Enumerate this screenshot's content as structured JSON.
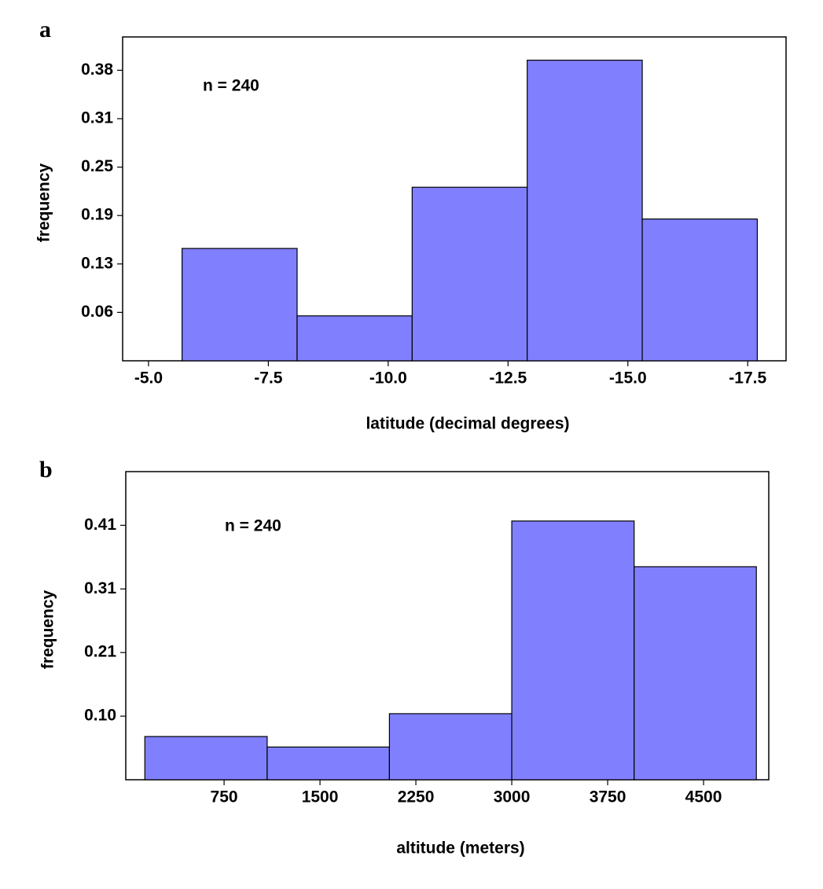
{
  "chart_data": [
    {
      "type": "histogram",
      "label": "a",
      "annotation": "n = 240",
      "xlabel": "latitude (decimal degrees)",
      "ylabel": "frequency",
      "bins": [
        -5.7,
        -8.1,
        -10.5,
        -12.9,
        -15.3,
        -17.7
      ],
      "values": [
        0.145,
        0.058,
        0.224,
        0.388,
        0.183
      ],
      "color": "#8080ff",
      "xlim": [
        -4.46,
        -18.3
      ],
      "xticks": [
        {
          "value": -5,
          "label": "-5.0"
        },
        {
          "value": -7.5,
          "label": "-7.5"
        },
        {
          "value": -10,
          "label": "-10.0"
        },
        {
          "value": -12.5,
          "label": "-12.5"
        },
        {
          "value": -15,
          "label": "-15.0"
        },
        {
          "value": -17.5,
          "label": "-17.5"
        }
      ],
      "ylim": [
        0,
        0.418
      ],
      "yticks": [
        {
          "value": 0.0625,
          "label": "0.06"
        },
        {
          "value": 0.125,
          "label": "0.13"
        },
        {
          "value": 0.1875,
          "label": "0.19"
        },
        0.25,
        {
          "value": 0.3125,
          "label": "0.31"
        },
        {
          "value": 0.375,
          "label": "0.38"
        }
      ]
    },
    {
      "type": "histogram",
      "label": "b",
      "annotation": "n = 240",
      "xlabel": "altitude (meters)",
      "ylabel": "frequency",
      "bins": [
        130,
        1087,
        2043,
        3000,
        3957,
        4913
      ],
      "values": [
        0.07,
        0.053,
        0.107,
        0.419,
        0.345
      ],
      "color": "#8080ff",
      "xlim": [
        -19,
        5010
      ],
      "xticks": [
        750,
        1500,
        2250,
        3000,
        3750,
        4500
      ],
      "ylim": [
        0,
        0.499
      ],
      "yticks": [
        {
          "value": 0.103,
          "label": "0.10"
        },
        {
          "value": 0.206,
          "label": "0.21"
        },
        {
          "value": 0.309,
          "label": "0.31"
        },
        {
          "value": 0.412,
          "label": "0.41"
        }
      ]
    }
  ]
}
